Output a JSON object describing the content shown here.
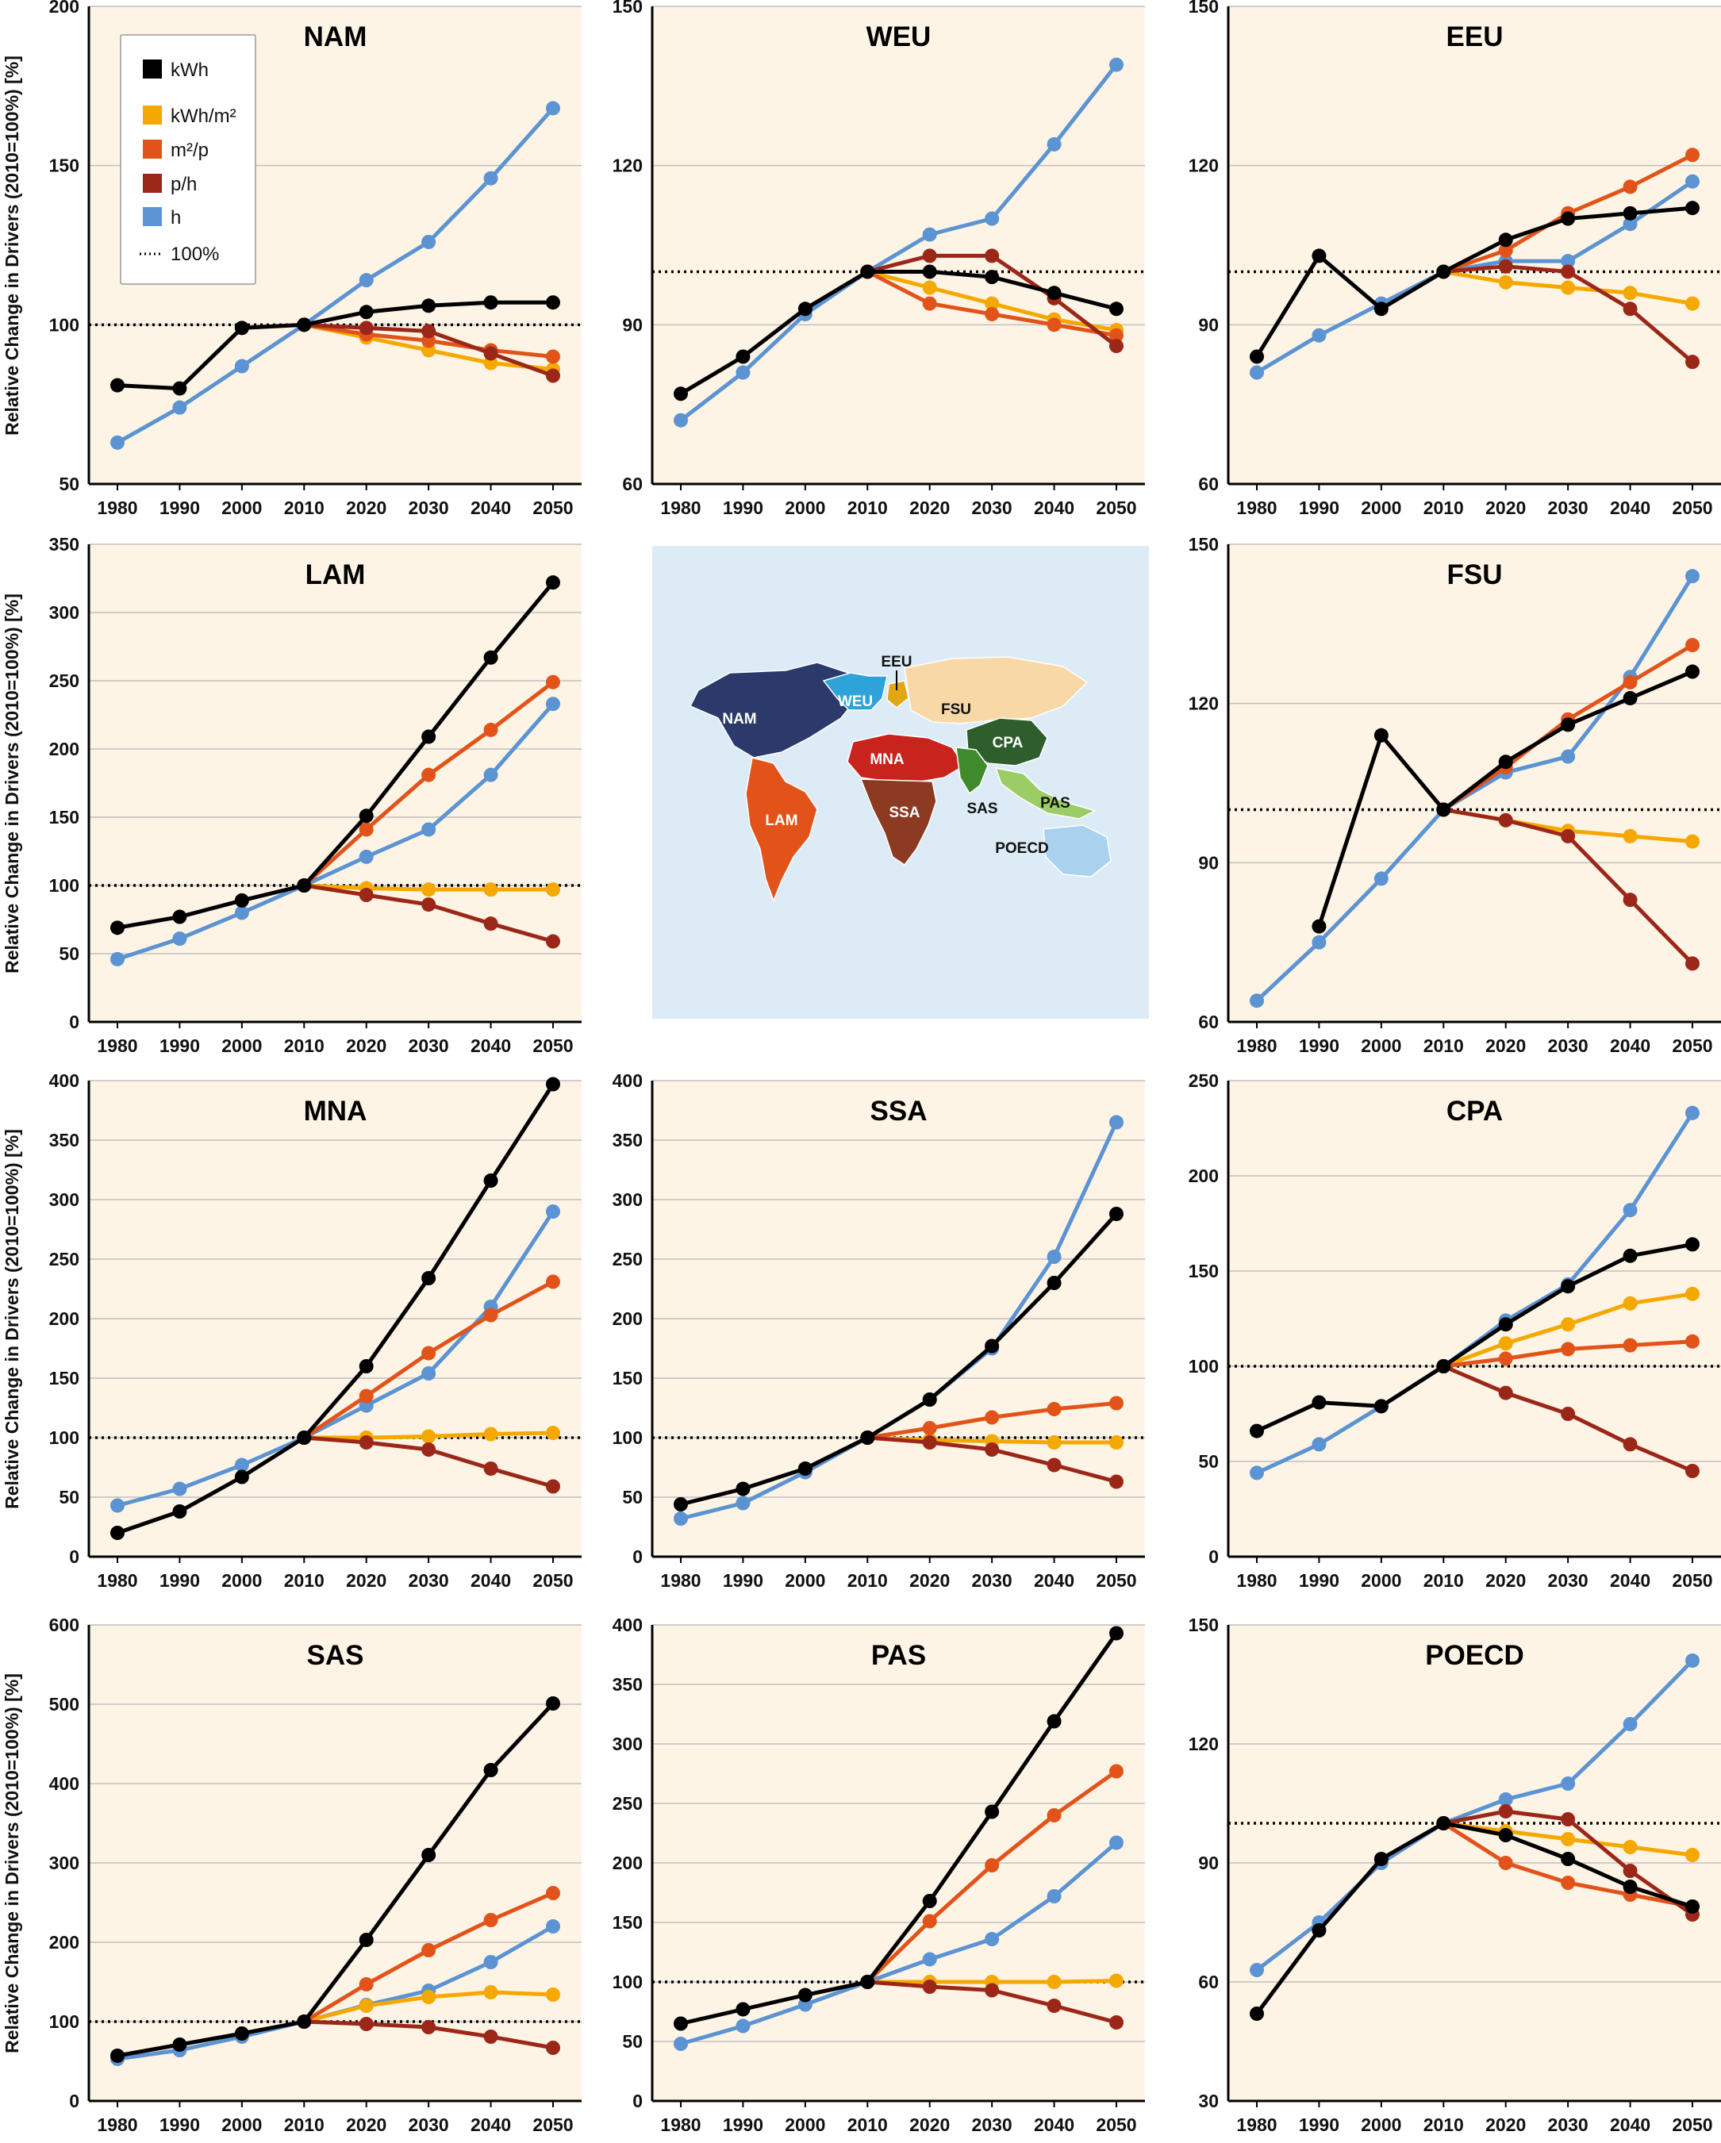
{
  "y_axis_label": "Relative Change in Drivers (2010=100%) [%]",
  "legend": {
    "items": [
      {
        "key": "kwh",
        "label": "kWh",
        "color": "#000000",
        "kind": "square"
      },
      {
        "key": "kwhm2",
        "label": "kWh/m²",
        "color": "#f5a800",
        "kind": "square"
      },
      {
        "key": "m2p",
        "label": "m²/p",
        "color": "#e2531a",
        "kind": "square"
      },
      {
        "key": "ph",
        "label": "p/h",
        "color": "#9b2718",
        "kind": "square"
      },
      {
        "key": "h",
        "label": "h",
        "color": "#5b93d3",
        "kind": "square"
      },
      {
        "key": "ref",
        "label": "100%",
        "color": "#000000",
        "kind": "dotted"
      }
    ]
  },
  "colors": {
    "panel_bg": "#fef4e6",
    "grid": "#bfbfbf",
    "map_bg": "#dcebf5"
  },
  "map": {
    "icon": "world-regions-map",
    "labels": [
      "NAM",
      "WEU",
      "EEU",
      "FSU",
      "CPA",
      "MNA",
      "SAS",
      "PAS",
      "SSA",
      "LAM",
      "POECD"
    ]
  },
  "chart_data": [
    {
      "type": "line",
      "title": "NAM",
      "x": [
        1980,
        1990,
        2000,
        2010,
        2020,
        2030,
        2040,
        2050
      ],
      "ylim": [
        50,
        200
      ],
      "yticks": [
        50,
        100,
        150,
        200
      ],
      "reference": 100,
      "series": [
        {
          "name": "h",
          "values": [
            63,
            74,
            87,
            100,
            114,
            126,
            146,
            168
          ]
        },
        {
          "name": "kWh/m²",
          "values": [
            null,
            null,
            null,
            100,
            96,
            92,
            88,
            86
          ]
        },
        {
          "name": "m²/p",
          "values": [
            null,
            null,
            null,
            100,
            97,
            95,
            92,
            90
          ]
        },
        {
          "name": "p/h",
          "values": [
            null,
            null,
            null,
            100,
            99,
            98,
            91,
            84
          ]
        },
        {
          "name": "kWh",
          "values": [
            81,
            80,
            99,
            100,
            104,
            106,
            107,
            107
          ]
        }
      ]
    },
    {
      "type": "line",
      "title": "WEU",
      "x": [
        1980,
        1990,
        2000,
        2010,
        2020,
        2030,
        2040,
        2050
      ],
      "ylim": [
        60,
        150
      ],
      "yticks": [
        60,
        90,
        120,
        150
      ],
      "reference": 100,
      "series": [
        {
          "name": "h",
          "values": [
            72,
            81,
            92,
            100,
            107,
            110,
            124,
            139
          ]
        },
        {
          "name": "kWh/m²",
          "values": [
            null,
            null,
            null,
            100,
            97,
            94,
            91,
            89
          ]
        },
        {
          "name": "m²/p",
          "values": [
            null,
            null,
            null,
            100,
            94,
            92,
            90,
            88
          ]
        },
        {
          "name": "p/h",
          "values": [
            null,
            null,
            null,
            100,
            103,
            103,
            95,
            86
          ]
        },
        {
          "name": "kWh",
          "values": [
            77,
            84,
            93,
            100,
            100,
            99,
            96,
            93
          ]
        }
      ]
    },
    {
      "type": "line",
      "title": "EEU",
      "x": [
        1980,
        1990,
        2000,
        2010,
        2020,
        2030,
        2040,
        2050
      ],
      "ylim": [
        60,
        150
      ],
      "yticks": [
        60,
        90,
        120,
        150
      ],
      "reference": 100,
      "series": [
        {
          "name": "h",
          "values": [
            81,
            88,
            94,
            100,
            102,
            102,
            109,
            117
          ]
        },
        {
          "name": "kWh/m²",
          "values": [
            null,
            null,
            null,
            100,
            98,
            97,
            96,
            94
          ]
        },
        {
          "name": "m²/p",
          "values": [
            null,
            null,
            null,
            100,
            104,
            111,
            116,
            122
          ]
        },
        {
          "name": "p/h",
          "values": [
            null,
            null,
            null,
            100,
            101,
            100,
            93,
            83
          ]
        },
        {
          "name": "kWh",
          "values": [
            84,
            103,
            93,
            100,
            106,
            110,
            111,
            112
          ]
        }
      ]
    },
    {
      "type": "line",
      "title": "LAM",
      "x": [
        1980,
        1990,
        2000,
        2010,
        2020,
        2030,
        2040,
        2050
      ],
      "ylim": [
        0,
        350
      ],
      "yticks": [
        0,
        50,
        100,
        150,
        200,
        250,
        300,
        350
      ],
      "reference": 100,
      "series": [
        {
          "name": "h",
          "values": [
            46,
            61,
            80,
            100,
            121,
            141,
            181,
            233
          ]
        },
        {
          "name": "kWh/m²",
          "values": [
            null,
            null,
            null,
            100,
            98,
            97,
            97,
            97
          ]
        },
        {
          "name": "m²/p",
          "values": [
            null,
            null,
            null,
            100,
            141,
            181,
            214,
            249
          ]
        },
        {
          "name": "p/h",
          "values": [
            null,
            null,
            null,
            100,
            93,
            86,
            72,
            59
          ]
        },
        {
          "name": "kWh",
          "values": [
            69,
            77,
            89,
            100,
            151,
            209,
            267,
            322
          ]
        }
      ]
    },
    {
      "type": "line",
      "title": "FSU",
      "x": [
        1980,
        1990,
        2000,
        2010,
        2020,
        2030,
        2040,
        2050
      ],
      "ylim": [
        60,
        150
      ],
      "yticks": [
        60,
        90,
        120,
        150
      ],
      "reference": 100,
      "series": [
        {
          "name": "h",
          "values": [
            null,
            null,
            null,
            null,
            null,
            null,
            null,
            null
          ],
          "values_full": [
            64,
            75,
            87,
            100,
            107,
            110,
            125,
            144
          ]
        },
        {
          "name": "kWh/m²",
          "values": [
            null,
            null,
            null,
            100,
            98,
            96,
            95,
            94
          ]
        },
        {
          "name": "m²/p",
          "values": [
            null,
            null,
            null,
            100,
            108,
            117,
            124,
            131
          ]
        },
        {
          "name": "p/h",
          "values": [
            null,
            null,
            null,
            100,
            98,
            95,
            83,
            71
          ]
        },
        {
          "name": "kWh",
          "values": [
            null,
            78,
            114,
            100,
            109,
            116,
            121,
            126
          ]
        }
      ]
    },
    {
      "type": "line",
      "title": "MNA",
      "x": [
        1980,
        1990,
        2000,
        2010,
        2020,
        2030,
        2040,
        2050
      ],
      "ylim": [
        0,
        400
      ],
      "yticks": [
        0,
        50,
        100,
        150,
        200,
        250,
        300,
        350,
        400
      ],
      "reference": 100,
      "series": [
        {
          "name": "h",
          "values": [
            43,
            57,
            77,
            100,
            127,
            154,
            210,
            290
          ]
        },
        {
          "name": "kWh/m²",
          "values": [
            null,
            null,
            null,
            100,
            100,
            101,
            103,
            104
          ]
        },
        {
          "name": "m²/p",
          "values": [
            null,
            null,
            null,
            100,
            135,
            171,
            203,
            231
          ]
        },
        {
          "name": "p/h",
          "values": [
            null,
            null,
            null,
            100,
            96,
            90,
            74,
            59
          ]
        },
        {
          "name": "kWh",
          "values": [
            20,
            38,
            67,
            100,
            160,
            234,
            316,
            397
          ]
        }
      ]
    },
    {
      "type": "line",
      "title": "SSA",
      "x": [
        1980,
        1990,
        2000,
        2010,
        2020,
        2030,
        2040,
        2050
      ],
      "ylim": [
        0,
        400
      ],
      "yticks": [
        0,
        50,
        100,
        150,
        200,
        250,
        300,
        350,
        400
      ],
      "reference": 100,
      "series": [
        {
          "name": "h",
          "values": [
            32,
            45,
            71,
            100,
            132,
            175,
            252,
            365
          ]
        },
        {
          "name": "kWh/m²",
          "values": [
            null,
            null,
            null,
            100,
            98,
            97,
            96,
            96
          ]
        },
        {
          "name": "m²/p",
          "values": [
            null,
            null,
            null,
            100,
            108,
            117,
            124,
            129
          ]
        },
        {
          "name": "p/h",
          "values": [
            null,
            null,
            null,
            100,
            96,
            90,
            77,
            63
          ]
        },
        {
          "name": "kWh",
          "values": [
            44,
            57,
            74,
            100,
            132,
            177,
            230,
            288
          ]
        }
      ]
    },
    {
      "type": "line",
      "title": "CPA",
      "x": [
        1980,
        1990,
        2000,
        2010,
        2020,
        2030,
        2040,
        2050
      ],
      "ylim": [
        0,
        250
      ],
      "yticks": [
        0,
        50,
        100,
        150,
        200,
        250
      ],
      "reference": 100,
      "series": [
        {
          "name": "h",
          "values": [
            44,
            59,
            79,
            100,
            124,
            143,
            182,
            233
          ]
        },
        {
          "name": "kWh/m²",
          "values": [
            null,
            null,
            null,
            100,
            112,
            122,
            133,
            138
          ]
        },
        {
          "name": "m²/p",
          "values": [
            null,
            null,
            null,
            100,
            104,
            109,
            111,
            113
          ]
        },
        {
          "name": "p/h",
          "values": [
            null,
            null,
            null,
            100,
            86,
            75,
            59,
            45
          ]
        },
        {
          "name": "kWh",
          "values": [
            66,
            81,
            79,
            100,
            122,
            142,
            158,
            164
          ]
        }
      ]
    },
    {
      "type": "line",
      "title": "SAS",
      "x": [
        1980,
        1990,
        2000,
        2010,
        2020,
        2030,
        2040,
        2050
      ],
      "ylim": [
        0,
        600
      ],
      "yticks": [
        0,
        100,
        200,
        300,
        400,
        500,
        600
      ],
      "reference": 100,
      "series": [
        {
          "name": "h",
          "values": [
            53,
            64,
            81,
            100,
            121,
            139,
            175,
            220
          ]
        },
        {
          "name": "kWh/m²",
          "values": [
            null,
            null,
            null,
            100,
            120,
            131,
            137,
            134
          ]
        },
        {
          "name": "m²/p",
          "values": [
            null,
            null,
            null,
            100,
            147,
            190,
            228,
            262
          ]
        },
        {
          "name": "p/h",
          "values": [
            null,
            null,
            null,
            100,
            97,
            93,
            81,
            67
          ]
        },
        {
          "name": "kWh",
          "values": [
            57,
            71,
            85,
            100,
            203,
            310,
            417,
            501
          ]
        }
      ]
    },
    {
      "type": "line",
      "title": "PAS",
      "x": [
        1980,
        1990,
        2000,
        2010,
        2020,
        2030,
        2040,
        2050
      ],
      "ylim": [
        0,
        400
      ],
      "yticks": [
        0,
        50,
        100,
        150,
        200,
        250,
        300,
        350,
        400
      ],
      "reference": 100,
      "series": [
        {
          "name": "h",
          "values": [
            48,
            63,
            81,
            100,
            119,
            136,
            172,
            217
          ]
        },
        {
          "name": "kWh/m²",
          "values": [
            null,
            null,
            null,
            100,
            100,
            100,
            100,
            101
          ]
        },
        {
          "name": "m²/p",
          "values": [
            null,
            null,
            null,
            100,
            151,
            198,
            240,
            277
          ]
        },
        {
          "name": "p/h",
          "values": [
            null,
            null,
            null,
            100,
            96,
            93,
            80,
            66
          ]
        },
        {
          "name": "kWh",
          "values": [
            65,
            77,
            89,
            100,
            168,
            243,
            319,
            393
          ]
        }
      ]
    },
    {
      "type": "line",
      "title": "POECD",
      "x": [
        1980,
        1990,
        2000,
        2010,
        2020,
        2030,
        2040,
        2050
      ],
      "ylim": [
        30,
        150
      ],
      "yticks": [
        30,
        60,
        90,
        120,
        150
      ],
      "reference": 100,
      "series": [
        {
          "name": "h",
          "values": [
            63,
            75,
            90,
            100,
            106,
            110,
            125,
            141
          ]
        },
        {
          "name": "kWh/m²",
          "values": [
            null,
            null,
            null,
            100,
            98,
            96,
            94,
            92
          ]
        },
        {
          "name": "m²/p",
          "values": [
            null,
            null,
            null,
            100,
            90,
            85,
            82,
            79
          ]
        },
        {
          "name": "p/h",
          "values": [
            null,
            null,
            null,
            100,
            103,
            101,
            88,
            77
          ]
        },
        {
          "name": "kWh",
          "values": [
            52,
            73,
            91,
            100,
            97,
            91,
            84,
            79
          ]
        }
      ]
    }
  ]
}
